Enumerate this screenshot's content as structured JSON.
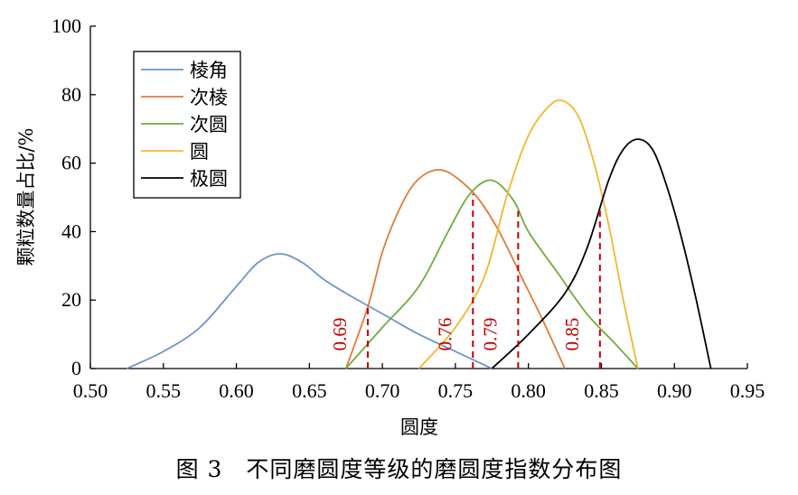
{
  "caption": "图 3　不同磨圆度等级的磨圆度指数分布图",
  "chart_data": {
    "type": "line",
    "title": "",
    "xlabel": "圆度",
    "ylabel": "颗粒数量占比/%",
    "xlim": [
      0.5,
      0.95
    ],
    "ylim": [
      0,
      100
    ],
    "x_ticks": [
      "0.50",
      "0.55",
      "0.60",
      "0.65",
      "0.70",
      "0.75",
      "0.80",
      "0.85",
      "0.90",
      "0.95"
    ],
    "y_ticks": [
      "0",
      "20",
      "40",
      "60",
      "80",
      "100"
    ],
    "grid": false,
    "legend_position": "top-left",
    "series": [
      {
        "name": "棱角",
        "color": "#7094c8",
        "x": [
          0.525,
          0.55,
          0.575,
          0.6,
          0.615,
          0.63,
          0.645,
          0.66,
          0.675,
          0.7,
          0.725,
          0.75,
          0.775
        ],
        "y": [
          0,
          5,
          12,
          24,
          31,
          33.5,
          31,
          26,
          22,
          16,
          10,
          5,
          0
        ]
      },
      {
        "name": "次棱",
        "color": "#e07b39",
        "x": [
          0.675,
          0.69,
          0.7,
          0.71,
          0.72,
          0.73,
          0.74,
          0.75,
          0.765,
          0.78,
          0.795,
          0.81,
          0.825
        ],
        "y": [
          0,
          18,
          34,
          45,
          53,
          57,
          58,
          56,
          50,
          40,
          27,
          14,
          0
        ]
      },
      {
        "name": "次圆",
        "color": "#72ab3e",
        "x": [
          0.675,
          0.7,
          0.725,
          0.745,
          0.76,
          0.775,
          0.79,
          0.8,
          0.82,
          0.84,
          0.86,
          0.875
        ],
        "y": [
          0,
          12,
          24,
          40,
          51,
          55,
          49,
          40,
          28,
          16,
          7,
          0
        ]
      },
      {
        "name": "圆",
        "color": "#f2b630",
        "x": [
          0.725,
          0.75,
          0.77,
          0.785,
          0.8,
          0.815,
          0.825,
          0.835,
          0.845,
          0.855,
          0.865,
          0.875
        ],
        "y": [
          0,
          12,
          27,
          50,
          68,
          77,
          78,
          73,
          60,
          42,
          20,
          0
        ]
      },
      {
        "name": "极圆",
        "color": "#000000",
        "x": [
          0.775,
          0.8,
          0.825,
          0.84,
          0.855,
          0.865,
          0.875,
          0.885,
          0.895,
          0.905,
          0.915,
          0.925
        ],
        "y": [
          0,
          10,
          22,
          35,
          55,
          64,
          67,
          64,
          53,
          38,
          20,
          0
        ]
      }
    ],
    "thresholds": [
      {
        "x": 0.69,
        "top": 19,
        "label": "0.69"
      },
      {
        "x": 0.762,
        "top": 51,
        "label": "0.76"
      },
      {
        "x": 0.793,
        "top": 46,
        "label": "0.79"
      },
      {
        "x": 0.849,
        "top": 47,
        "label": "0.85"
      }
    ]
  }
}
